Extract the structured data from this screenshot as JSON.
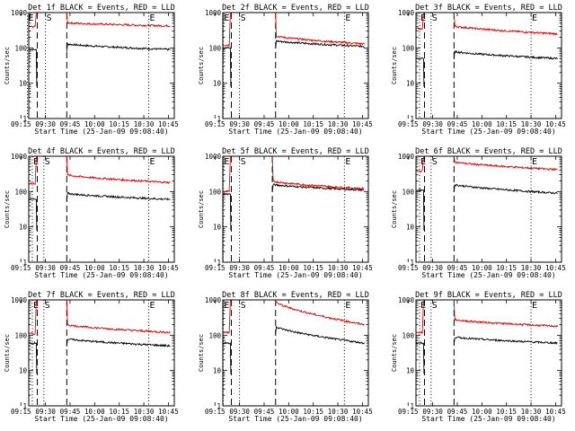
{
  "figure": {
    "xlabel": "Start Time (25-Jan-09 09:08:40)",
    "ylabel": "Counts/sec",
    "title_suffix": "BLACK = Events, RED = LLD"
  },
  "chart_data": [
    {
      "type": "line",
      "title": "Det 1f BLACK = Events, RED = LLD",
      "detector": "Det 1f",
      "xlabel": "Start Time (25-Jan-09 09:08:40)",
      "ylabel": "Counts/sec",
      "xlim_min": [
        9.33,
        10.81
      ],
      "xticks": [
        "09:15",
        "09:30",
        "09:45",
        "10:00",
        "10:15",
        "10:30",
        "10:45"
      ],
      "yscale": "log",
      "ylim": [
        1,
        1000
      ],
      "yticks": [
        "1",
        "10",
        "100",
        "1000"
      ],
      "markers": [
        {
          "time": "09:19",
          "label": "E",
          "style": "dotted"
        },
        {
          "time": "09:25",
          "label": "",
          "style": "dashed"
        },
        {
          "time": "09:30",
          "label": "S",
          "style": "dotted"
        },
        {
          "time": "09:43",
          "label": "",
          "style": "dashed"
        },
        {
          "time": "10:33",
          "label": "E",
          "style": "dotted"
        }
      ],
      "series": [
        {
          "name": "Events",
          "color": "#000000",
          "pre": 90,
          "post_start": 130,
          "post_end": 90
        },
        {
          "name": "LLD",
          "color": "#dd0000",
          "pre": 400,
          "post_start": 520,
          "post_end": 420
        }
      ]
    },
    {
      "type": "line",
      "title": "Det 2f BLACK = Events, RED = LLD",
      "detector": "Det 2f",
      "xlabel": "Start Time (25-Jan-09 09:08:40)",
      "ylabel": "Counts/sec",
      "xlim_min": [
        9.33,
        10.81
      ],
      "xticks": [
        "09:15",
        "09:30",
        "09:45",
        "10:00",
        "10:15",
        "10:30",
        "10:45"
      ],
      "yscale": "log",
      "ylim": [
        1,
        1000
      ],
      "yticks": [
        "1",
        "10",
        "100",
        "1000"
      ],
      "markers": [
        {
          "time": "09:20",
          "label": "E",
          "style": "dotted"
        },
        {
          "time": "09:25",
          "label": "",
          "style": "dashed"
        },
        {
          "time": "09:30",
          "label": "S",
          "style": "dotted"
        },
        {
          "time": "09:52",
          "label": "",
          "style": "dashed"
        },
        {
          "time": "10:34",
          "label": "E",
          "style": "dotted"
        }
      ],
      "series": [
        {
          "name": "Events",
          "color": "#000000",
          "pre": 100,
          "post_start": 160,
          "post_end": 110
        },
        {
          "name": "LLD",
          "color": "#dd0000",
          "pre": 120,
          "post_start": 220,
          "post_end": 130
        }
      ]
    },
    {
      "type": "line",
      "title": "Det 3f BLACK = Events, RED = LLD",
      "detector": "Det 3f",
      "xlabel": "Start Time (25-Jan-09 09:08:40)",
      "ylabel": "Counts/sec",
      "xlim_min": [
        9.33,
        10.81
      ],
      "xticks": [
        "09:15",
        "09:30",
        "09:45",
        "10:00",
        "10:15",
        "10:30",
        "10:45"
      ],
      "yscale": "log",
      "ylim": [
        1,
        1000
      ],
      "yticks": [
        "1",
        "10",
        "100",
        "1000"
      ],
      "markers": [
        {
          "time": "09:22",
          "label": "E",
          "style": "dotted"
        },
        {
          "time": "09:25",
          "label": "",
          "style": "dashed"
        },
        {
          "time": "09:29",
          "label": "S",
          "style": "dotted"
        },
        {
          "time": "09:43",
          "label": "",
          "style": "dashed"
        },
        {
          "time": "10:30",
          "label": "E",
          "style": "dotted"
        }
      ],
      "series": [
        {
          "name": "Events",
          "color": "#000000",
          "pre": 50,
          "post_start": 80,
          "post_end": 50
        },
        {
          "name": "LLD",
          "color": "#dd0000",
          "pre": 350,
          "post_start": 420,
          "post_end": 250
        }
      ]
    },
    {
      "type": "line",
      "title": "Det 4f BLACK = Events, RED = LLD",
      "detector": "Det 4f",
      "xlabel": "Start Time (25-Jan-09 09:08:40)",
      "ylabel": "Counts/sec",
      "xlim_min": [
        9.33,
        10.81
      ],
      "xticks": [
        "09:15",
        "09:30",
        "09:45",
        "10:00",
        "10:15",
        "10:30",
        "10:45"
      ],
      "yscale": "log",
      "ylim": [
        1,
        1000
      ],
      "yticks": [
        "1",
        "10",
        "100",
        "1000"
      ],
      "markers": [
        {
          "time": "09:22",
          "label": "E",
          "style": "dotted"
        },
        {
          "time": "09:25",
          "label": "",
          "style": "dashed"
        },
        {
          "time": "09:29",
          "label": "S",
          "style": "dotted"
        },
        {
          "time": "09:43",
          "label": "",
          "style": "dashed"
        },
        {
          "time": "10:33",
          "label": "E",
          "style": "dotted"
        }
      ],
      "series": [
        {
          "name": "Events",
          "color": "#000000",
          "pre": 60,
          "post_start": 90,
          "post_end": 60
        },
        {
          "name": "LLD",
          "color": "#dd0000",
          "pre": 170,
          "post_start": 300,
          "post_end": 180
        }
      ]
    },
    {
      "type": "line",
      "title": "Det 5f BLACK = Events, RED = LLD",
      "detector": "Det 5f",
      "xlabel": "Start Time (25-Jan-09 09:08:40)",
      "ylabel": "Counts/sec",
      "xlim_min": [
        9.33,
        10.81
      ],
      "xticks": [
        "09:15",
        "09:30",
        "09:45",
        "10:00",
        "10:15",
        "10:30",
        "10:45"
      ],
      "yscale": "log",
      "ylim": [
        1,
        1000
      ],
      "yticks": [
        "1",
        "10",
        "100",
        "1000"
      ],
      "markers": [
        {
          "time": "09:20",
          "label": "E",
          "style": "dotted"
        },
        {
          "time": "09:25",
          "label": "",
          "style": "dashed"
        },
        {
          "time": "09:30",
          "label": "S",
          "style": "dotted"
        },
        {
          "time": "09:50",
          "label": "",
          "style": "dashed"
        },
        {
          "time": "10:34",
          "label": "E",
          "style": "dotted"
        }
      ],
      "series": [
        {
          "name": "Events",
          "color": "#000000",
          "pre": 85,
          "post_start": 160,
          "post_end": 110
        },
        {
          "name": "LLD",
          "color": "#dd0000",
          "pre": 100,
          "post_start": 200,
          "post_end": 120
        }
      ]
    },
    {
      "type": "line",
      "title": "Det 6f BLACK = Events, RED = LLD",
      "detector": "Det 6f",
      "xlabel": "Start Time (25-Jan-09 09:08:40)",
      "ylabel": "Counts/sec",
      "xlim_min": [
        9.33,
        10.81
      ],
      "xticks": [
        "09:15",
        "09:30",
        "09:45",
        "10:00",
        "10:15",
        "10:30",
        "10:45"
      ],
      "yscale": "log",
      "ylim": [
        1,
        1000
      ],
      "yticks": [
        "1",
        "10",
        "100",
        "1000"
      ],
      "markers": [
        {
          "time": "09:22",
          "label": "E",
          "style": "dotted"
        },
        {
          "time": "09:25",
          "label": "",
          "style": "dashed"
        },
        {
          "time": "09:29",
          "label": "S",
          "style": "dotted"
        },
        {
          "time": "09:43",
          "label": "",
          "style": "dashed"
        },
        {
          "time": "10:30",
          "label": "E",
          "style": "dotted"
        }
      ],
      "series": [
        {
          "name": "Events",
          "color": "#000000",
          "pre": 110,
          "post_start": 160,
          "post_end": 90
        },
        {
          "name": "LLD",
          "color": "#dd0000",
          "pre": 380,
          "post_start": 700,
          "post_end": 420
        }
      ]
    },
    {
      "type": "line",
      "title": "Det 7f BLACK = Events, RED = LLD",
      "detector": "Det 7f",
      "xlabel": "Start Time (25-Jan-09 09:08:40)",
      "ylabel": "Counts/sec",
      "xlim_min": [
        9.33,
        10.81
      ],
      "xticks": [
        "09:15",
        "09:30",
        "09:45",
        "10:00",
        "10:15",
        "10:30",
        "10:45"
      ],
      "yscale": "log",
      "ylim": [
        1,
        1000
      ],
      "yticks": [
        "1",
        "10",
        "100",
        "1000"
      ],
      "markers": [
        {
          "time": "09:22",
          "label": "E",
          "style": "dotted"
        },
        {
          "time": "09:25",
          "label": "",
          "style": "dashed"
        },
        {
          "time": "09:29",
          "label": "S",
          "style": "dotted"
        },
        {
          "time": "09:43",
          "label": "",
          "style": "dashed"
        },
        {
          "time": "10:33",
          "label": "E",
          "style": "dotted"
        }
      ],
      "series": [
        {
          "name": "Events",
          "color": "#000000",
          "pre": 60,
          "post_start": 80,
          "post_end": 50
        },
        {
          "name": "LLD",
          "color": "#dd0000",
          "pre": 110,
          "post_start": 200,
          "post_end": 120
        }
      ]
    },
    {
      "type": "line",
      "title": "Det 8f BLACK = Events, RED = LLD",
      "detector": "Det 8f",
      "xlabel": "Start Time (25-Jan-09 09:08:40)",
      "ylabel": "Counts/sec",
      "xlim_min": [
        9.33,
        10.81
      ],
      "xticks": [
        "09:15",
        "09:30",
        "09:45",
        "10:00",
        "10:15",
        "10:30",
        "10:45"
      ],
      "yscale": "log",
      "ylim": [
        1,
        1000
      ],
      "yticks": [
        "1",
        "10",
        "100",
        "1000"
      ],
      "markers": [
        {
          "time": "09:20",
          "label": "E",
          "style": "dotted"
        },
        {
          "time": "09:25",
          "label": "",
          "style": "dashed"
        },
        {
          "time": "09:30",
          "label": "S",
          "style": "dotted"
        },
        {
          "time": "09:52",
          "label": "",
          "style": "dashed"
        },
        {
          "time": "10:34",
          "label": "E",
          "style": "dotted"
        }
      ],
      "series": [
        {
          "name": "Events",
          "color": "#000000",
          "pre": 60,
          "post_start": 180,
          "post_end": 60
        },
        {
          "name": "LLD",
          "color": "#dd0000",
          "pre": 120,
          "post_start": 900,
          "post_end": 200
        }
      ]
    },
    {
      "type": "line",
      "title": "Det 9f BLACK = Events, RED = LLD",
      "detector": "Det 9f",
      "xlabel": "Start Time (25-Jan-09 09:08:40)",
      "ylabel": "Counts/sec",
      "xlim_min": [
        9.33,
        10.81
      ],
      "xticks": [
        "09:15",
        "09:30",
        "09:45",
        "10:00",
        "10:15",
        "10:30",
        "10:45"
      ],
      "yscale": "log",
      "ylim": [
        1,
        1000
      ],
      "yticks": [
        "1",
        "10",
        "100",
        "1000"
      ],
      "markers": [
        {
          "time": "09:22",
          "label": "E",
          "style": "dotted"
        },
        {
          "time": "09:25",
          "label": "",
          "style": "dashed"
        },
        {
          "time": "09:29",
          "label": "S",
          "style": "dotted"
        },
        {
          "time": "09:43",
          "label": "",
          "style": "dashed"
        },
        {
          "time": "10:30",
          "label": "E",
          "style": "dotted"
        }
      ],
      "series": [
        {
          "name": "Events",
          "color": "#000000",
          "pre": 60,
          "post_start": 90,
          "post_end": 60
        },
        {
          "name": "LLD",
          "color": "#dd0000",
          "pre": 120,
          "post_start": 280,
          "post_end": 180
        }
      ]
    }
  ]
}
